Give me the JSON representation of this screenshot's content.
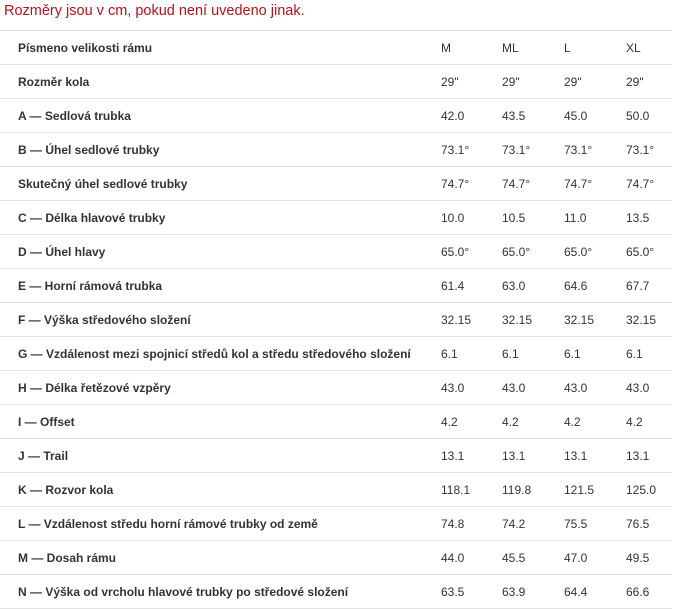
{
  "note": "Rozměry jsou v cm, pokud není uvedeno jinak.",
  "columns": [
    "Písmeno velikosti rámu",
    "M",
    "ML",
    "L",
    "XL"
  ],
  "rows": [
    {
      "label": "Rozměr kola",
      "values": [
        "29\"",
        "29\"",
        "29\"",
        "29\""
      ]
    },
    {
      "label": "A — Sedlová trubka",
      "values": [
        "42.0",
        "43.5",
        "45.0",
        "50.0"
      ]
    },
    {
      "label": "B — Úhel sedlové trubky",
      "values": [
        "73.1°",
        "73.1°",
        "73.1°",
        "73.1°"
      ]
    },
    {
      "label": "Skutečný úhel sedlové trubky",
      "values": [
        "74.7°",
        "74.7°",
        "74.7°",
        "74.7°"
      ]
    },
    {
      "label": "C — Délka hlavové trubky",
      "values": [
        "10.0",
        "10.5",
        "11.0",
        "13.5"
      ]
    },
    {
      "label": "D — Úhel hlavy",
      "values": [
        "65.0°",
        "65.0°",
        "65.0°",
        "65.0°"
      ]
    },
    {
      "label": "E — Horní rámová trubka",
      "values": [
        "61.4",
        "63.0",
        "64.6",
        "67.7"
      ]
    },
    {
      "label": "F — Výška středového složení",
      "values": [
        "32.15",
        "32.15",
        "32.15",
        "32.15"
      ]
    },
    {
      "label": "G — Vzdálenost mezi spojnicí středů kol a středu středového složení",
      "values": [
        "6.1",
        "6.1",
        "6.1",
        "6.1"
      ]
    },
    {
      "label": "H — Délka řetězové vzpěry",
      "values": [
        "43.0",
        "43.0",
        "43.0",
        "43.0"
      ]
    },
    {
      "label": "I — Offset",
      "values": [
        "4.2",
        "4.2",
        "4.2",
        "4.2"
      ]
    },
    {
      "label": "J — Trail",
      "values": [
        "13.1",
        "13.1",
        "13.1",
        "13.1"
      ]
    },
    {
      "label": "K — Rozvor kola",
      "values": [
        "118.1",
        "119.8",
        "121.5",
        "125.0"
      ]
    },
    {
      "label": "L — Vzdálenost středu horní rámové trubky od země",
      "values": [
        "74.8",
        "74.2",
        "75.5",
        "76.5"
      ]
    },
    {
      "label": "M — Dosah rámu",
      "values": [
        "44.0",
        "45.5",
        "47.0",
        "49.5"
      ]
    },
    {
      "label": "N — Výška od vrcholu hlavové trubky po středové složení",
      "values": [
        "63.5",
        "63.9",
        "64.4",
        "66.6"
      ]
    }
  ],
  "colors": {
    "note_text": "#b5121b",
    "row_border": "#e3e3e3",
    "body_text": "#333333"
  }
}
